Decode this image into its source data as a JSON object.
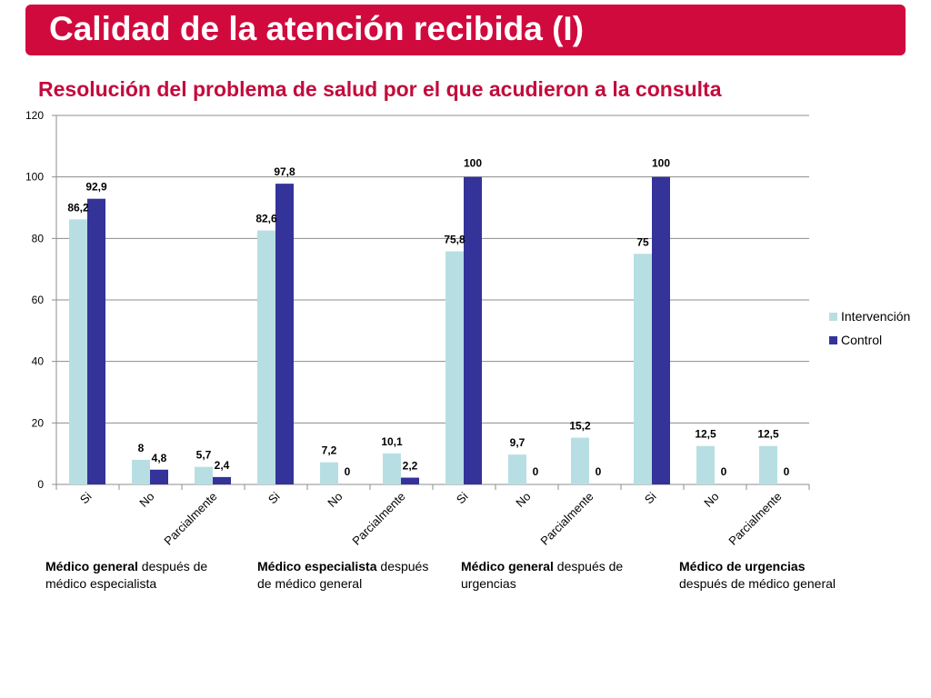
{
  "slide": {
    "title": "Calidad de la atención recibida (I)",
    "subtitle": "Resolución del problema de salud por el que acudieron a la consulta",
    "title_bg": "#d10a3e",
    "title_color": "#ffffff",
    "subtitle_color": "#c30b3c"
  },
  "chart_data": {
    "type": "bar",
    "title": "Resolución del problema de salud por el que acudieron a la consulta",
    "xlabel": "",
    "ylabel": "",
    "ylim": [
      0,
      120
    ],
    "yticks": [
      "0",
      "20",
      "40",
      "60",
      "80",
      "100",
      "120"
    ],
    "grid": true,
    "legend_position": "right",
    "categories": [
      "Si",
      "No",
      "Parcialmente",
      "Si",
      "No",
      "Parcialmente",
      "Si",
      "No",
      "Parcialmente",
      "Si",
      "No",
      "Parcialmente"
    ],
    "series": [
      {
        "name": "Intervención",
        "color": "#b7dfe3",
        "values": [
          86.2,
          8,
          5.7,
          82.6,
          7.2,
          10.1,
          75.8,
          9.7,
          15.2,
          75,
          12.5,
          12.5
        ],
        "labels": [
          "86,2",
          "8",
          "5,7",
          "82,6",
          "7,2",
          "10,1",
          "75,8",
          "9,7",
          "15,2",
          "75",
          "12,5",
          "12,5"
        ]
      },
      {
        "name": "Control",
        "color": "#333399",
        "values": [
          92.9,
          4.8,
          2.4,
          97.8,
          0,
          2.2,
          100,
          0,
          0,
          100,
          0,
          0
        ],
        "labels": [
          "92,9",
          "4,8",
          "2,4",
          "97,8",
          "0",
          "2,2",
          "100",
          "0",
          "0",
          "100",
          "0",
          "0"
        ]
      }
    ],
    "groups": [
      {
        "bold": "Médico general",
        "rest": " después de",
        "line2": "médico especialista"
      },
      {
        "bold": "Médico especialista",
        "rest": " después",
        "line2": "de médico general"
      },
      {
        "bold": "Médico general",
        "rest": " después de",
        "line2": "urgencias"
      },
      {
        "bold": "Médico de urgencias",
        "rest": "",
        "line2": "después de médico general"
      }
    ]
  }
}
